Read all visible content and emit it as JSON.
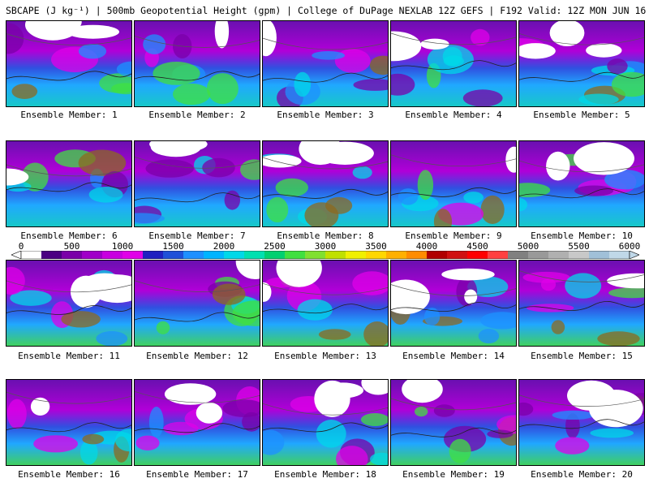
{
  "header": {
    "title": "SBCAPE (J kg⁻¹) | 500mb Geopotential Height (gpm) | College of DuPage NEXLAB 12Z GEFS | F192 Valid: 12Z MON JUN 16 2025"
  },
  "members": [
    {
      "label": "Ensemble Member: 1"
    },
    {
      "label": "Ensemble Member: 2"
    },
    {
      "label": "Ensemble Member: 3"
    },
    {
      "label": "Ensemble Member: 4"
    },
    {
      "label": "Ensemble Member: 5"
    },
    {
      "label": "Ensemble Member: 6"
    },
    {
      "label": "Ensemble Member: 7"
    },
    {
      "label": "Ensemble Member: 8"
    },
    {
      "label": "Ensemble Member: 9"
    },
    {
      "label": "Ensemble Member: 10"
    },
    {
      "label": "Ensemble Member: 11"
    },
    {
      "label": "Ensemble Member: 12"
    },
    {
      "label": "Ensemble Member: 13"
    },
    {
      "label": "Ensemble Member: 14"
    },
    {
      "label": "Ensemble Member: 15"
    },
    {
      "label": "Ensemble Member: 16"
    },
    {
      "label": "Ensemble Member: 17"
    },
    {
      "label": "Ensemble Member: 18"
    },
    {
      "label": "Ensemble Member: 19"
    },
    {
      "label": "Ensemble Member: 20"
    }
  ],
  "colorbar": {
    "tick_labels": [
      "0",
      "500",
      "1000",
      "1500",
      "2000",
      "2500",
      "3000",
      "3500",
      "4000",
      "4500",
      "5000",
      "5500",
      "6000"
    ],
    "colors": [
      "#ffffff",
      "#4b0082",
      "#7a00a8",
      "#a000c8",
      "#c800e0",
      "#e000e8",
      "#2020c0",
      "#1e50d8",
      "#1e90ff",
      "#00b4ff",
      "#00d8e8",
      "#00e0b0",
      "#00d070",
      "#40e040",
      "#80e030",
      "#c0e000",
      "#f0f000",
      "#ffd700",
      "#ffb000",
      "#ff8c00",
      "#b00000",
      "#d01010",
      "#ff0000",
      "#ff4040",
      "#808080",
      "#999999",
      "#b0b0b0",
      "#c8c8c8",
      "#a0c0d8",
      "#c0d8e8"
    ]
  }
}
